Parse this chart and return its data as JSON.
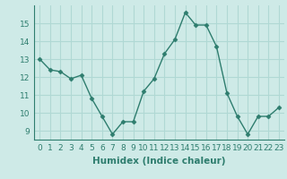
{
  "x": [
    0,
    1,
    2,
    3,
    4,
    5,
    6,
    7,
    8,
    9,
    10,
    11,
    12,
    13,
    14,
    15,
    16,
    17,
    18,
    19,
    20,
    21,
    22,
    23
  ],
  "y": [
    13.0,
    12.4,
    12.3,
    11.9,
    12.1,
    10.8,
    9.8,
    8.8,
    9.5,
    9.5,
    11.2,
    11.9,
    13.3,
    14.1,
    15.6,
    14.9,
    14.9,
    13.7,
    11.1,
    9.8,
    8.8,
    9.8,
    9.8,
    10.3
  ],
  "line_color": "#2e7d6e",
  "marker": "D",
  "marker_size": 2.5,
  "line_width": 1.0,
  "bg_color": "#ceeae7",
  "grid_color": "#b0d8d4",
  "xlabel": "Humidex (Indice chaleur)",
  "xlabel_fontsize": 7.5,
  "tick_fontsize": 6.5,
  "ylim": [
    8.5,
    16.0
  ],
  "xlim": [
    -0.5,
    23.5
  ],
  "yticks": [
    9,
    10,
    11,
    12,
    13,
    14,
    15
  ],
  "xticks": [
    0,
    1,
    2,
    3,
    4,
    5,
    6,
    7,
    8,
    9,
    10,
    11,
    12,
    13,
    14,
    15,
    16,
    17,
    18,
    19,
    20,
    21,
    22,
    23
  ]
}
